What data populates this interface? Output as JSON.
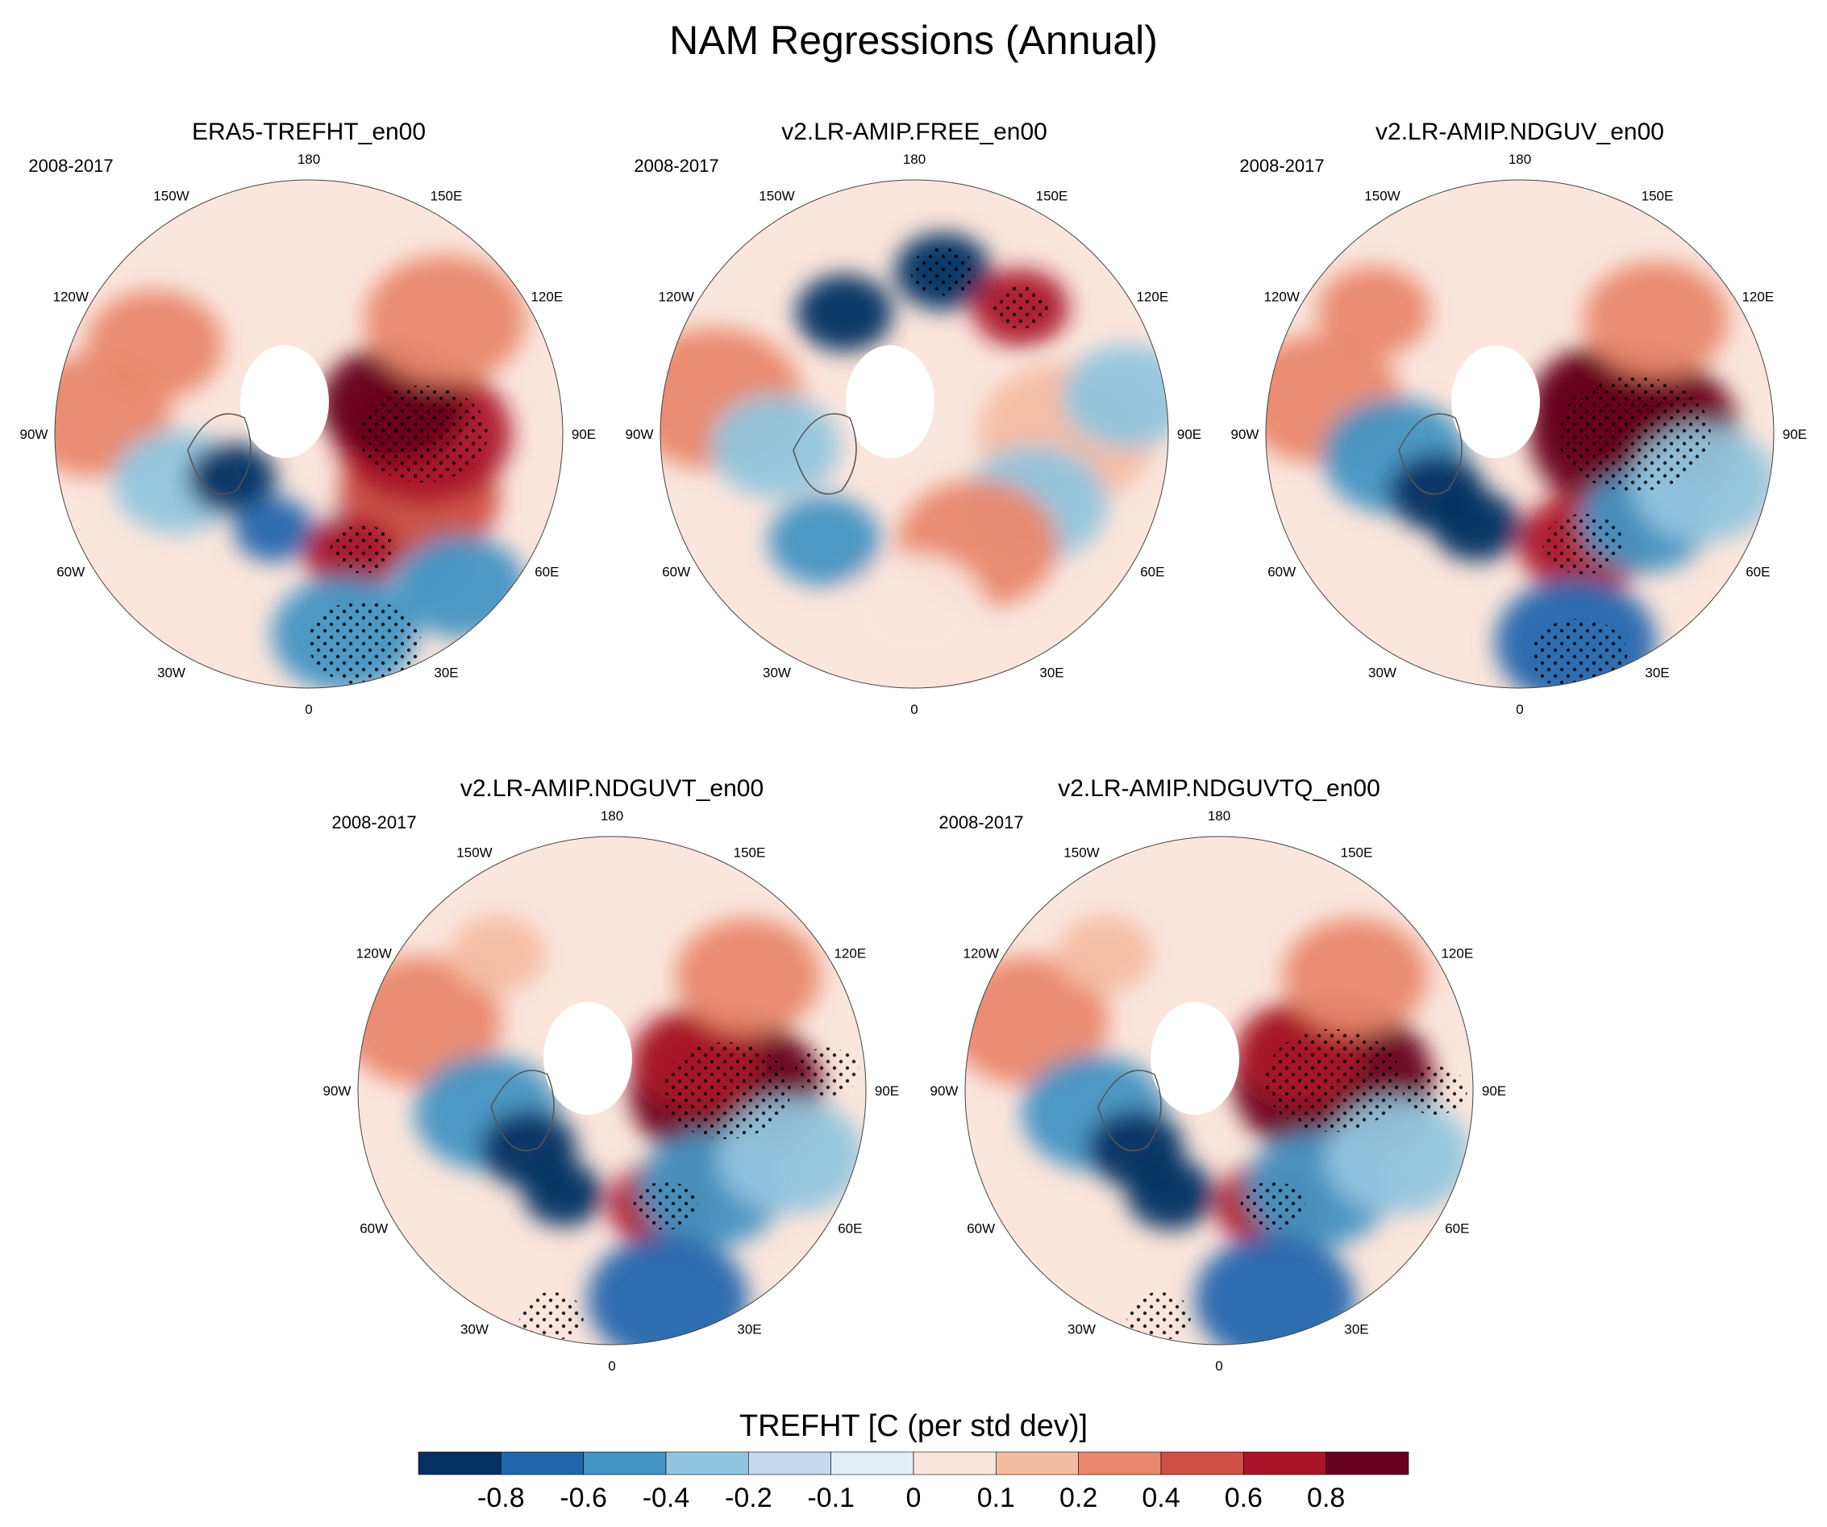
{
  "title": "NAM Regressions (Annual)",
  "chart_data": {
    "type": "polar-stereographic filled contour maps (regression on NAM index)",
    "variable": "TREFHT",
    "units": "C (per std dev)",
    "colorbar_title": "TREFHT [C (per std dev)]",
    "colorbar_levels": [
      "-0.8",
      "-0.6",
      "-0.4",
      "-0.2",
      "-0.1",
      "0",
      "0.1",
      "0.2",
      "0.4",
      "0.6",
      "0.8"
    ],
    "colorbar_colors": [
      "#053061",
      "#2166ac",
      "#4393c3",
      "#92c5de",
      "#c6dbef",
      "#e5eef5",
      "#fbe6dd",
      "#f4bca2",
      "#e9886c",
      "#cf4e45",
      "#aa1428",
      "#67001f"
    ],
    "longitude_labels": [
      "180",
      "150E",
      "120E",
      "90E",
      "60E",
      "30E",
      "0",
      "30W",
      "60W",
      "90W",
      "120W",
      "150W"
    ],
    "stippling": "significant regions",
    "panels": [
      {
        "title": "ERA5-TREFHT_en00",
        "period": "2008-2017"
      },
      {
        "title": "v2.LR-AMIP.FREE_en00",
        "period": "2008-2017"
      },
      {
        "title": "v2.LR-AMIP.NDGUV_en00",
        "period": "2008-2017"
      },
      {
        "title": "v2.LR-AMIP.NDGUVT_en00",
        "period": "2008-2017"
      },
      {
        "title": "v2.LR-AMIP.NDGUVTQ_en00",
        "period": "2008-2017"
      }
    ]
  }
}
